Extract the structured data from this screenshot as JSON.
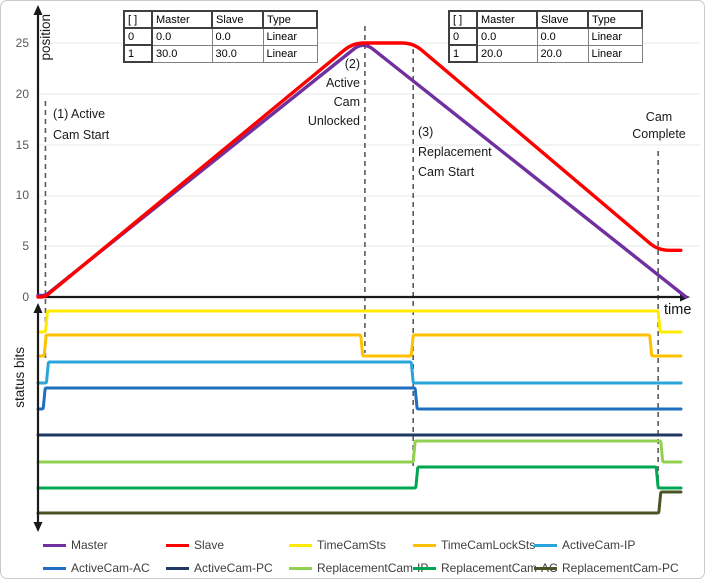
{
  "chart_data": [
    {
      "type": "line",
      "title": "",
      "xlabel": "time",
      "ylabel": "position",
      "yticks": [
        0,
        5,
        10,
        15,
        20,
        25
      ],
      "ylim": [
        0,
        27
      ],
      "x_units": "relative time (axis unlabeled, 0-100 estimated)",
      "grid": "horizontal",
      "series": [
        {
          "name": "Master",
          "color": "#7030A0",
          "points": [
            [
              0,
              0
            ],
            [
              1.15,
              0
            ],
            [
              50.2,
              25
            ],
            [
              100,
              0
            ]
          ]
        },
        {
          "name": "Slave",
          "color": "#FF0000",
          "points": [
            [
              0,
              0
            ],
            [
              1.05,
              0
            ],
            [
              48.6,
              25
            ],
            [
              57.9,
              25
            ],
            [
              95.7,
              4.6
            ],
            [
              99.2,
              4.6
            ]
          ]
        }
      ],
      "annotations": [
        {
          "lines": [
            "(1) Active",
            "Cam Start"
          ],
          "t": 1.15
        },
        {
          "lines": [
            "(2)",
            "Active",
            "Cam",
            "Unlocked"
          ],
          "t": 50.45
        },
        {
          "lines": [
            "(3)",
            "Replacement",
            "Cam Start"
          ],
          "t": 57.9
        },
        {
          "lines": [
            "Cam",
            "Complete"
          ],
          "t": 95.7
        }
      ]
    },
    {
      "type": "line",
      "subtype": "digital-status",
      "title": "",
      "ylabel": "status bits",
      "x_range": [
        0,
        99.2
      ],
      "levels": {
        "low": 0,
        "high": 1
      },
      "series": [
        {
          "name": "TimeCamSts",
          "color": "#FFEB00",
          "high_intervals": [
            [
              1.15,
              95.7
            ]
          ]
        },
        {
          "name": "TimeCamLockSts",
          "color": "#FFC000",
          "high_intervals": [
            [
              0.95,
              49.8
            ],
            [
              57.6,
              94.4
            ]
          ]
        },
        {
          "name": "ActiveCam-IP",
          "color": "#2AA5DC",
          "high_intervals": [
            [
              1.3,
              57.6
            ]
          ]
        },
        {
          "name": "ActiveCam-AC",
          "color": "#1E6FC0",
          "high_intervals": [
            [
              0.8,
              58.2
            ]
          ]
        },
        {
          "name": "ActiveCam-PC",
          "color": "#1F3864",
          "high_intervals": []
        },
        {
          "name": "ReplacementCam-IP",
          "color": "#92D050",
          "high_intervals": [
            [
              57.9,
              96.1
            ]
          ]
        },
        {
          "name": "ReplacementCam-AC",
          "color": "#00A651",
          "high_intervals": [
            [
              58.3,
              95.4
            ]
          ]
        },
        {
          "name": "ReplacementCam-PC",
          "color": "#4B5425",
          "high_intervals": [
            [
              95.8,
              99.2
            ]
          ]
        }
      ]
    }
  ],
  "cam_tables": [
    {
      "id": "active-cam-profile",
      "headers": [
        "[ ]",
        "Master",
        "Slave",
        "Type"
      ],
      "rows": [
        [
          "0",
          "0.0",
          "0.0",
          "Linear"
        ],
        [
          "1",
          "30.0",
          "30.0",
          "Linear"
        ]
      ]
    },
    {
      "id": "replacement-cam-profile",
      "headers": [
        "[ ]",
        "Master",
        "Slave",
        "Type"
      ],
      "rows": [
        [
          "0",
          "0.0",
          "0.0",
          "Linear"
        ],
        [
          "1",
          "20.0",
          "20.0",
          "Linear"
        ]
      ]
    }
  ],
  "colors": {
    "dashed_line": "#595959",
    "gridline": "#E7E7E7",
    "axis": "#1A1A1A"
  }
}
